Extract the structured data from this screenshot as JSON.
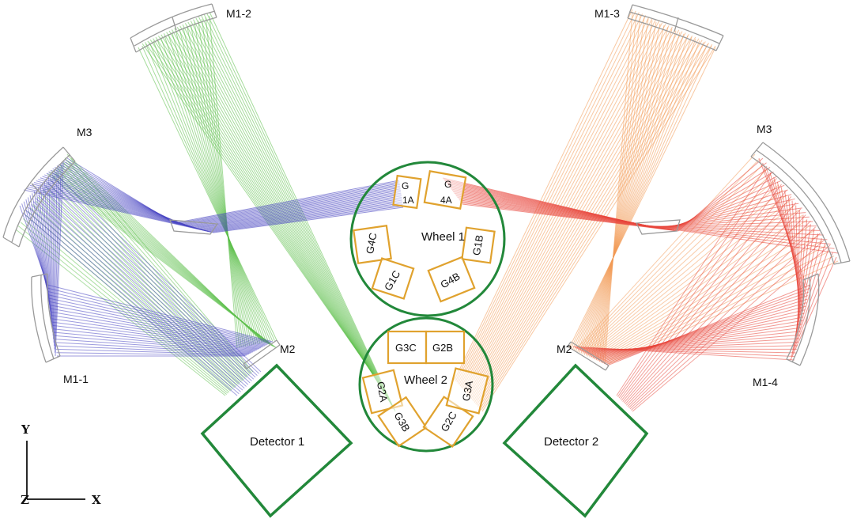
{
  "diagram": {
    "mirrors": {
      "m1_2": "M1-2",
      "m1_3": "M1-3",
      "m3_left": "M3",
      "m3_right": "M3",
      "m1_1": "M1-1",
      "m1_4": "M1-4",
      "m2_left": "M2",
      "m2_right": "M2"
    },
    "wheel1": {
      "title": "Wheel 1",
      "slots": {
        "g1a_line1": "G",
        "g1a_line2": "1A",
        "g4a_line1": "G",
        "g4a_line2": "4A",
        "g4c": "G4C",
        "g1c": "G1C",
        "g1b": "G1B",
        "g4b": "G4B"
      }
    },
    "wheel2": {
      "title": "Wheel 2",
      "slots": {
        "g3c": "G3C",
        "g2b": "G2B",
        "g2a": "G2A",
        "g3b": "G3B",
        "g2c": "G2C",
        "g3a": "G3A"
      }
    },
    "detectors": {
      "d1": "Detector 1",
      "d2": "Detector 2"
    },
    "axes": {
      "y": "Y",
      "x": "X",
      "z": "Z"
    },
    "colors": {
      "green_rays": "#5cbf4a",
      "blue_rays": "#4b47c2",
      "orange_rays": "#f39a55",
      "red_rays": "#e8453a",
      "wheel_outline": "#22883a",
      "grating_outline": "#e0a22e",
      "mirror_outline": "#9a9a9a"
    }
  }
}
